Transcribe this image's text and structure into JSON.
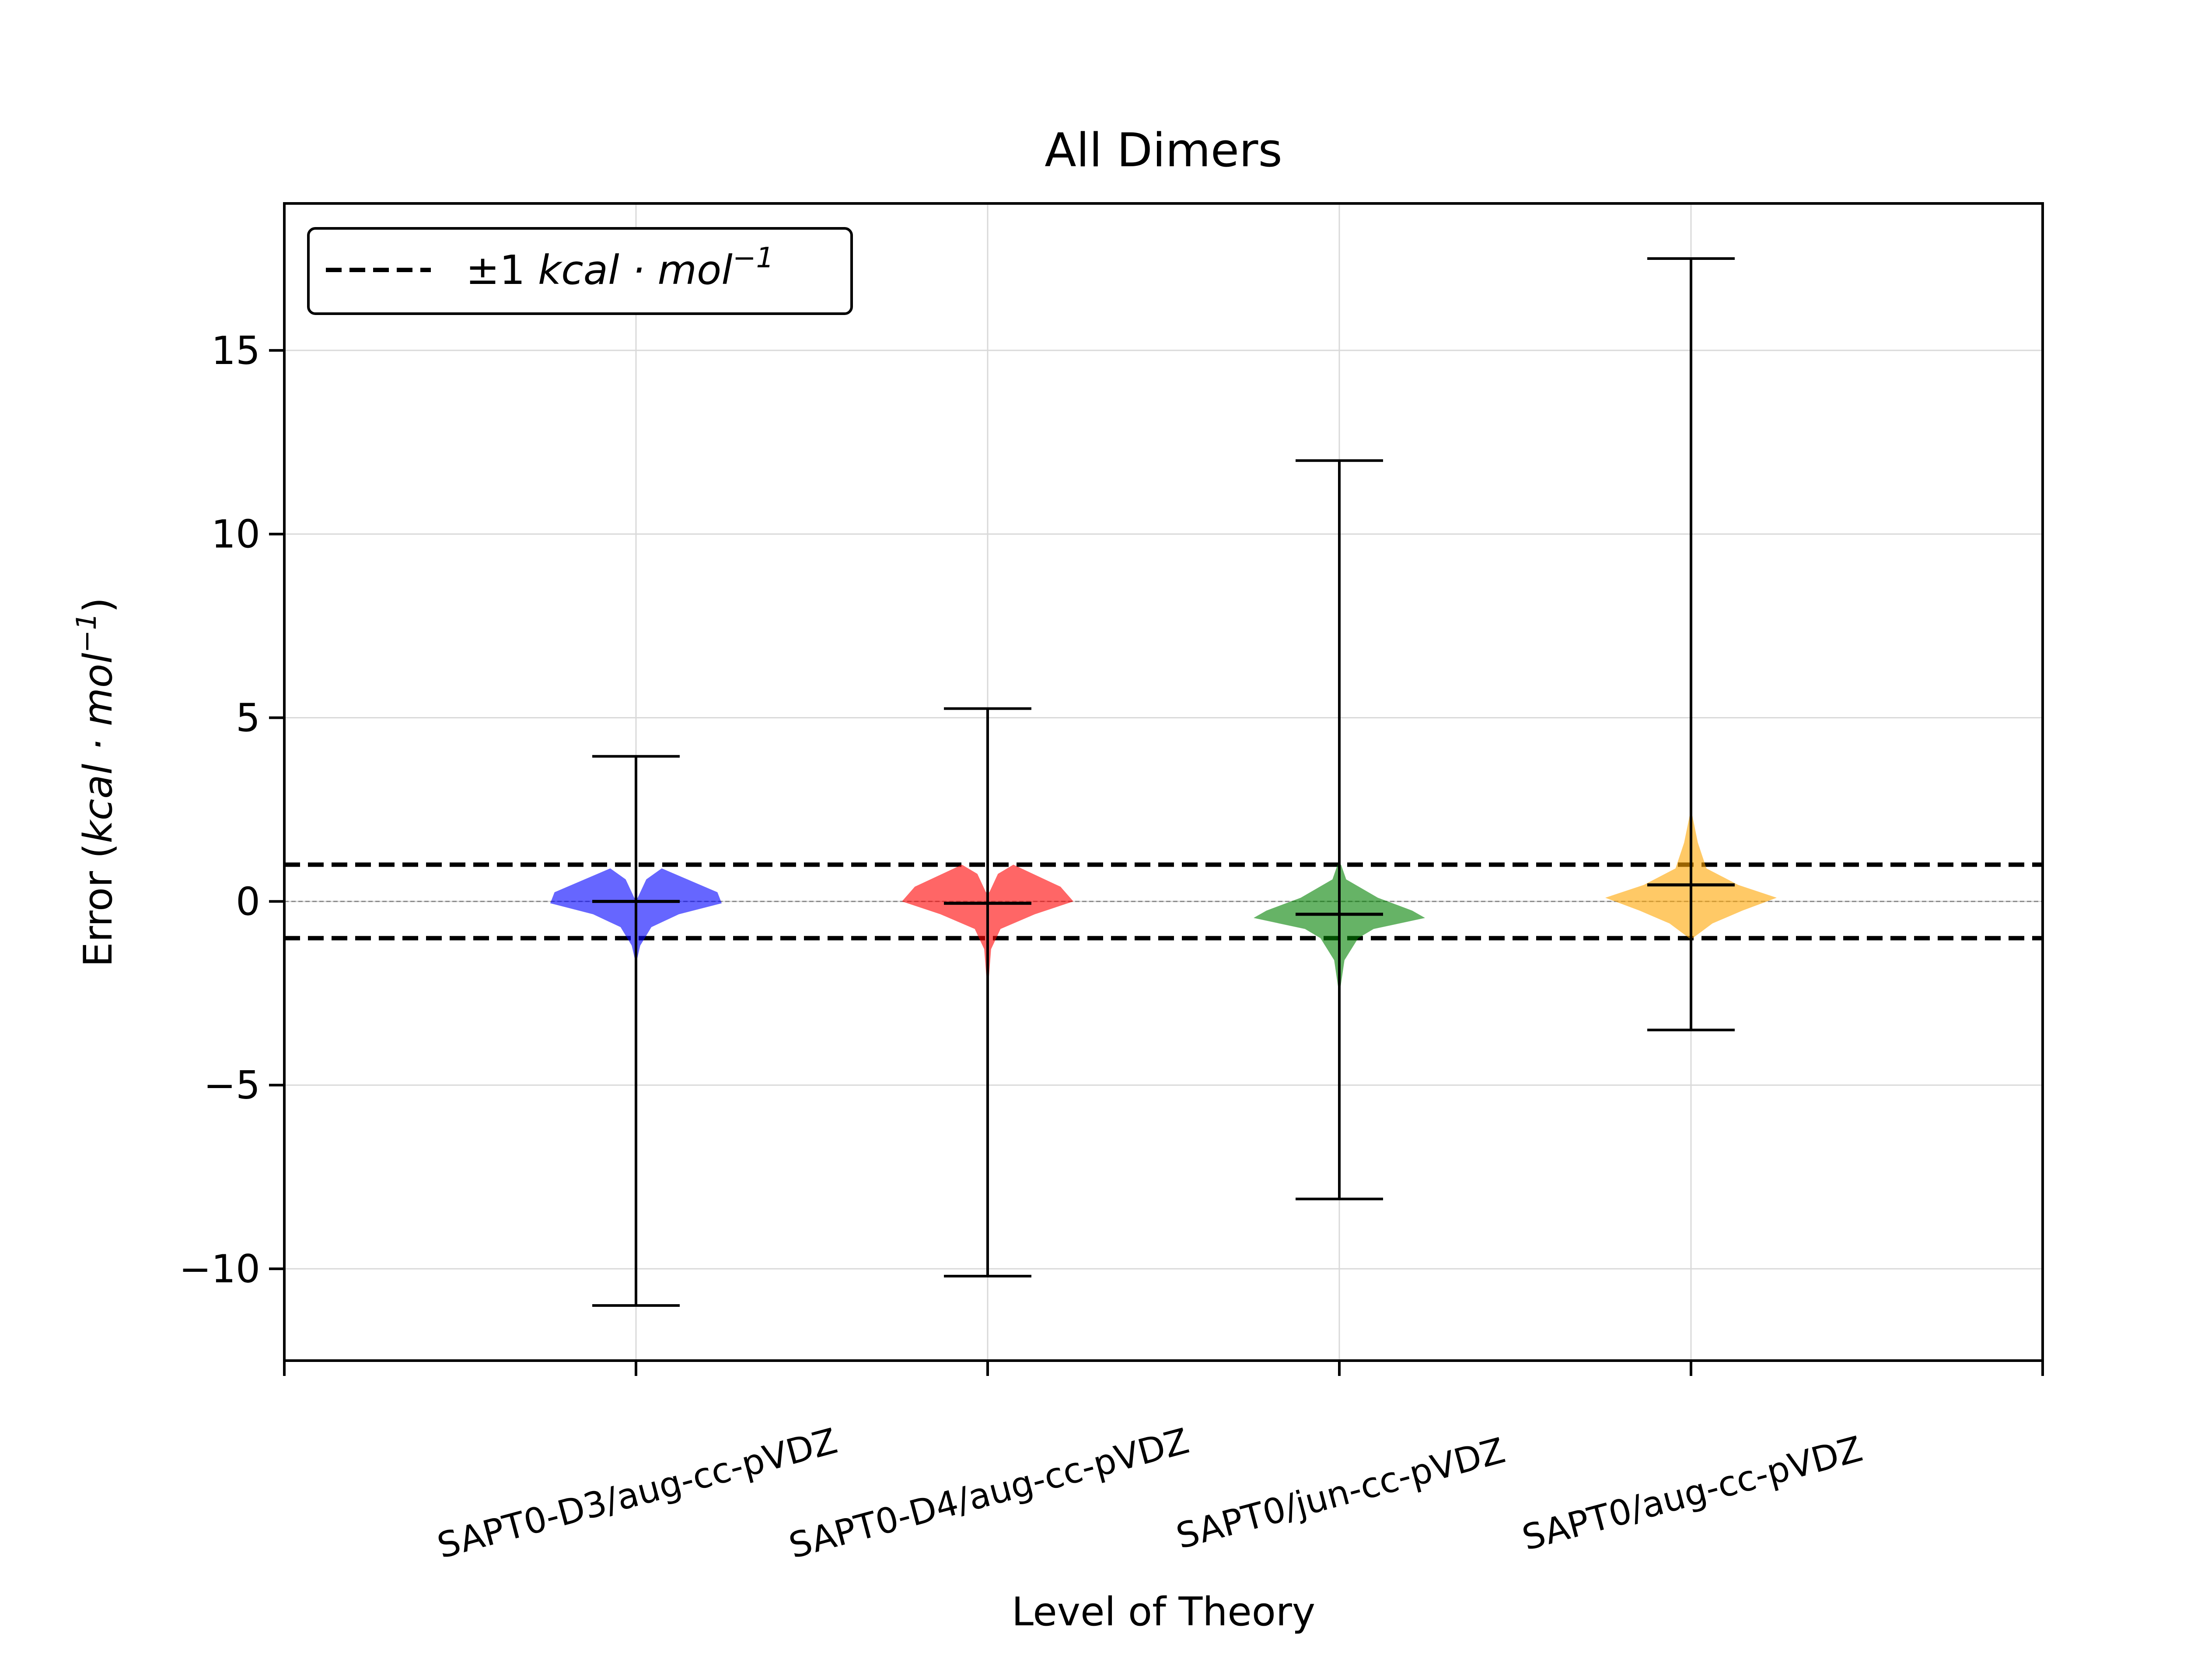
{
  "chart_data": {
    "type": "violin",
    "title": "All Dimers",
    "xlabel": "Level of Theory",
    "ylabel": {
      "prefix": "Error (",
      "unit_main": "kcal · mol",
      "unit_exp": "−1",
      "suffix": ")"
    },
    "ylim": [
      -12.5,
      19
    ],
    "yticks": [
      -10,
      -5,
      0,
      5,
      10,
      15
    ],
    "ytick_labels": [
      "−10",
      "−5",
      "0",
      "5",
      "10",
      "15"
    ],
    "grid": true,
    "legend": {
      "placement": "top-left",
      "label_prefix": "±1 ",
      "label_unit_main": "kcal · mol",
      "label_unit_exp": "−1"
    },
    "reference_lines": [
      1,
      -1,
      0
    ],
    "categories": [
      "SAPT0-D3/aug-cc-pVDZ",
      "SAPT0-D4/aug-cc-pVDZ",
      "SAPT0/jun-cc-pVDZ",
      "SAPT0/aug-cc-pVDZ"
    ],
    "series": [
      {
        "color": "#0000ff",
        "min": -11.0,
        "max": 3.95,
        "mean": 0.0
      },
      {
        "color": "#ff0000",
        "min": -10.2,
        "max": 5.25,
        "mean": -0.05
      },
      {
        "color": "#008000",
        "min": -8.1,
        "max": 12.0,
        "mean": -0.35
      },
      {
        "color": "#ffa500",
        "min": -3.5,
        "max": 17.5,
        "mean": 0.45
      }
    ]
  }
}
